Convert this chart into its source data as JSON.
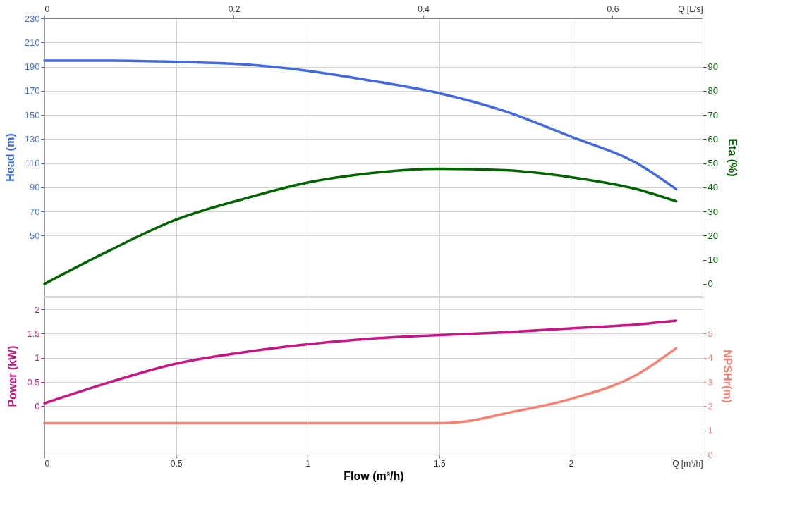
{
  "chart_data": [
    {
      "type": "line",
      "ylabel": "Head (m)",
      "y2label": "Eta (%)",
      "tick_labels": "y",
      "grid": true,
      "xlim": [
        0,
        2.5
      ],
      "xticks": [
        0,
        0.5,
        1,
        1.5,
        2,
        2.5
      ],
      "x2lim": [
        0,
        0.695
      ],
      "x2ticks": [
        0,
        0.2,
        0.4,
        0.6,
        {
          "value": 0.695,
          "label": "Q [L/s]"
        }
      ],
      "ylim": [
        0,
        230
      ],
      "yticks": [
        50,
        70,
        90,
        110,
        130,
        150,
        170,
        190,
        210,
        230
      ],
      "y2lim": [
        -5,
        110
      ],
      "y2ticks": [
        0,
        10,
        20,
        30,
        40,
        50,
        60,
        70,
        80,
        90
      ],
      "series": [
        {
          "color": "#4169e1",
          "x": [
            0,
            0.25,
            0.5,
            0.75,
            1,
            1.25,
            1.5,
            1.75,
            2,
            2.25,
            2.4
          ],
          "values": [
            195,
            195,
            194,
            192,
            186.5,
            178,
            168,
            153,
            132,
            110,
            88.5
          ]
        },
        {
          "color": "#006400",
          "axis": "y2",
          "x": [
            0,
            0.25,
            0.5,
            0.75,
            1,
            1.25,
            1.5,
            1.75,
            2,
            2.25,
            2.4
          ],
          "values": [
            0,
            14,
            26.6,
            35,
            42,
            46,
            47.7,
            47.1,
            44.2,
            39.2,
            34.2
          ]
        }
      ]
    },
    {
      "type": "line",
      "xlabel": "Flow (m³/h)",
      "ylabel": "Power (kW)",
      "y2label": "NPSHr(m)",
      "grid": true,
      "xlim": [
        0,
        2.5
      ],
      "xticks": [
        0,
        0.5,
        1,
        1.5,
        2,
        {
          "value": 2.5,
          "label": "Q [m³/h]"
        }
      ],
      "ylim": [
        -1,
        2.25
      ],
      "yticks": [
        0,
        0.5,
        1,
        1.5,
        2
      ],
      "y2lim": [
        0,
        6.5
      ],
      "y2ticks": [
        0,
        1,
        2,
        3,
        4,
        5
      ],
      "series": [
        {
          "color": "#c71585",
          "x": [
            0,
            0.25,
            0.5,
            0.75,
            1,
            1.25,
            1.5,
            1.75,
            2,
            2.25,
            2.4
          ],
          "values": [
            0.06,
            0.5,
            0.88,
            1.11,
            1.28,
            1.4,
            1.47,
            1.53,
            1.61,
            1.69,
            1.77
          ]
        },
        {
          "color": "#fa8072",
          "axis": "y2",
          "x": [
            0,
            0.5,
            1,
            1.25,
            1.5,
            1.62,
            1.75,
            2,
            2.25,
            2.4
          ],
          "values": [
            1.3,
            1.3,
            1.3,
            1.3,
            1.3,
            1.4,
            1.7,
            2.3,
            3.3,
            4.4
          ]
        }
      ]
    }
  ]
}
